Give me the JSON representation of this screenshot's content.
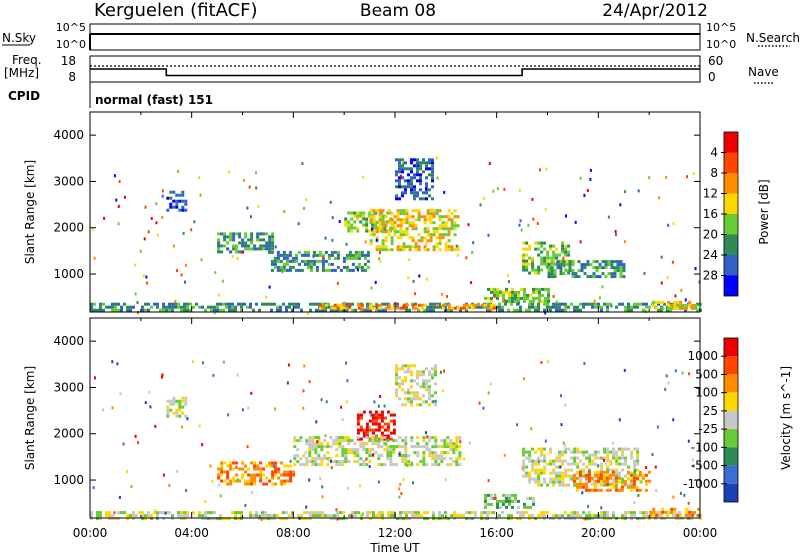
{
  "header": {
    "station": "Kerguelen (fitACF)",
    "beam": "Beam 08",
    "date": "24/Apr/2012"
  },
  "noise_panel": {
    "left_label": "N.Sky",
    "left_ticks": [
      "10^5",
      "10^0"
    ],
    "right_ticks": [
      "10^5",
      "10^0"
    ],
    "right_label": "N.Search"
  },
  "freq_panel": {
    "left_label_1": "Freq.",
    "left_label_2": "[MHz]",
    "left_ticks": [
      "18",
      "8"
    ],
    "right_ticks": [
      "60",
      "0"
    ],
    "right_label": "Nave",
    "cpid_label": "CPID",
    "cpid_text": "normal (fast) 151",
    "freq_series": [
      {
        "t": 0.0,
        "f": 13.0
      },
      {
        "t": 3.0,
        "f": 13.0
      },
      {
        "t": 3.0,
        "f": 10.5
      },
      {
        "t": 17.0,
        "f": 10.5
      },
      {
        "t": 17.0,
        "f": 13.0
      },
      {
        "t": 24.0,
        "f": 13.0
      }
    ]
  },
  "chart_data": [
    {
      "type": "heatmap",
      "quantity": "Power",
      "ylabel": "Slant Range [km]",
      "xlabel": "",
      "xlim": [
        0,
        24
      ],
      "ylim": [
        180,
        4500
      ],
      "x_ticks": [
        "00:00",
        "04:00",
        "08:00",
        "12:00",
        "16:00",
        "20:00",
        "00:00"
      ],
      "y_ticks": [
        "1000",
        "2000",
        "3000",
        "4000"
      ],
      "colorbar": {
        "label": "Power [dB]",
        "ticks": [
          "4",
          "8",
          "12",
          "16",
          "20",
          "24",
          "28"
        ],
        "colors": [
          "#0000ff",
          "#3060c8",
          "#2e8b57",
          "#66cc33",
          "#ffd700",
          "#ff8c00",
          "#ff4500",
          "#ee0000"
        ]
      },
      "regions": [
        {
          "t0": 0.0,
          "t1": 24.0,
          "r0": 200,
          "r1": 380,
          "level": 2
        },
        {
          "t0": 9.0,
          "t1": 16.0,
          "r0": 260,
          "r1": 360,
          "level": 5
        },
        {
          "t0": 15.5,
          "t1": 18.0,
          "r0": 420,
          "r1": 700,
          "level": 3
        },
        {
          "t0": 22.0,
          "t1": 24.0,
          "r0": 230,
          "r1": 420,
          "level": 4
        },
        {
          "t0": 3.0,
          "t1": 3.8,
          "r0": 2400,
          "r1": 2800,
          "level": 1
        },
        {
          "t0": 5.0,
          "t1": 7.2,
          "r0": 1500,
          "r1": 1900,
          "level": 2
        },
        {
          "t0": 7.0,
          "t1": 11.0,
          "r0": 1050,
          "r1": 1500,
          "level": 2
        },
        {
          "t0": 10.0,
          "t1": 12.0,
          "r0": 1950,
          "r1": 2350,
          "level": 3
        },
        {
          "t0": 11.0,
          "t1": 14.5,
          "r0": 1500,
          "r1": 2400,
          "level": 4
        },
        {
          "t0": 12.0,
          "t1": 13.5,
          "r0": 2600,
          "r1": 3500,
          "level": 1
        },
        {
          "t0": 17.0,
          "t1": 18.8,
          "r0": 1000,
          "r1": 1700,
          "level": 3
        },
        {
          "t0": 18.0,
          "t1": 21.0,
          "r0": 950,
          "r1": 1300,
          "level": 2
        }
      ]
    },
    {
      "type": "heatmap",
      "quantity": "Velocity",
      "ylabel": "Slant Range [km]",
      "xlabel": "Time UT",
      "xlim": [
        0,
        24
      ],
      "ylim": [
        180,
        4500
      ],
      "x_ticks": [
        "00:00",
        "04:00",
        "08:00",
        "12:00",
        "16:00",
        "20:00",
        "00:00"
      ],
      "y_ticks": [
        "1000",
        "2000",
        "3000",
        "4000"
      ],
      "colorbar": {
        "label": "Velocity [m s^-1]",
        "ticks": [
          "1000",
          "500",
          "100",
          "25",
          "-25",
          "-100",
          "-500",
          "-1000"
        ],
        "colors": [
          "#1f3fb8",
          "#3a6fd0",
          "#2e8b57",
          "#66cc33",
          "#c8c8c8",
          "#ffd700",
          "#ff8c00",
          "#ff4500",
          "#ee0000"
        ]
      },
      "regions": [
        {
          "t0": 0.0,
          "t1": 24.0,
          "r0": 200,
          "r1": 330,
          "level": 4
        },
        {
          "t0": 15.5,
          "t1": 17.5,
          "r0": 420,
          "r1": 700,
          "level": 3
        },
        {
          "t0": 10.5,
          "t1": 12.0,
          "r0": 1900,
          "r1": 2500,
          "level": 8
        },
        {
          "t0": 8.0,
          "t1": 14.5,
          "r0": 1350,
          "r1": 1950,
          "level": 4
        },
        {
          "t0": 12.0,
          "t1": 13.6,
          "r0": 2600,
          "r1": 3500,
          "level": 4
        },
        {
          "t0": 17.0,
          "t1": 21.5,
          "r0": 900,
          "r1": 1700,
          "level": 4
        },
        {
          "t0": 19.0,
          "t1": 22.0,
          "r0": 800,
          "r1": 1200,
          "level": 6
        },
        {
          "t0": 5.0,
          "t1": 8.0,
          "r0": 900,
          "r1": 1400,
          "level": 6
        },
        {
          "t0": 3.0,
          "t1": 3.8,
          "r0": 2400,
          "r1": 2800,
          "level": 4
        },
        {
          "t0": 22.0,
          "t1": 24.0,
          "r0": 230,
          "r1": 400,
          "level": 6
        }
      ]
    }
  ]
}
